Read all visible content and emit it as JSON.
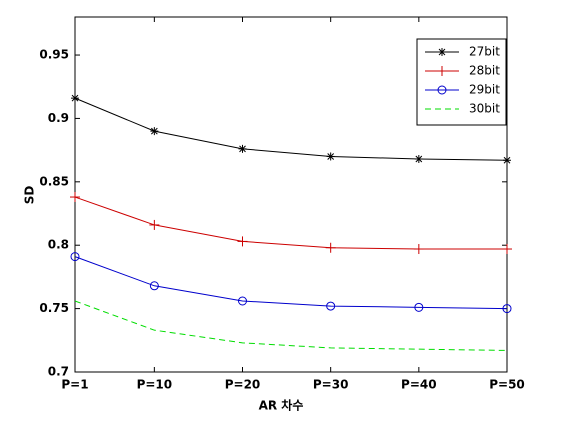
{
  "chart_data": {
    "type": "line",
    "xlabel": "AR 차수",
    "ylabel": "SD",
    "x": [
      1,
      10,
      20,
      30,
      40,
      50
    ],
    "xlim": [
      1,
      50
    ],
    "xticks": [
      {
        "value": 1,
        "label": "P=1"
      },
      {
        "value": 10,
        "label": "P=10"
      },
      {
        "value": 20,
        "label": "P=20"
      },
      {
        "value": 30,
        "label": "P=30"
      },
      {
        "value": 40,
        "label": "P=40"
      },
      {
        "value": 50,
        "label": "P=50"
      }
    ],
    "ylim": [
      0.7,
      0.98
    ],
    "yticks": [
      0.7,
      0.75,
      0.8,
      0.85,
      0.9,
      0.95
    ],
    "legend": "upper right",
    "series": [
      {
        "name": "27bit",
        "color": "#000000",
        "marker": "*",
        "linestyle": "-",
        "values": [
          0.916,
          0.89,
          0.876,
          0.87,
          0.868,
          0.867
        ]
      },
      {
        "name": "28bit",
        "color": "#cc0000",
        "marker": "+",
        "linestyle": "-",
        "values": [
          0.838,
          0.816,
          0.803,
          0.798,
          0.797,
          0.797
        ]
      },
      {
        "name": "29bit",
        "color": "#0000cc",
        "marker": "o",
        "linestyle": "-",
        "values": [
          0.791,
          0.768,
          0.756,
          0.752,
          0.751,
          0.75
        ]
      },
      {
        "name": "30bit",
        "color": "#00dd00",
        "marker": "none",
        "linestyle": "--",
        "values": [
          0.756,
          0.733,
          0.723,
          0.719,
          0.718,
          0.717
        ]
      }
    ]
  }
}
